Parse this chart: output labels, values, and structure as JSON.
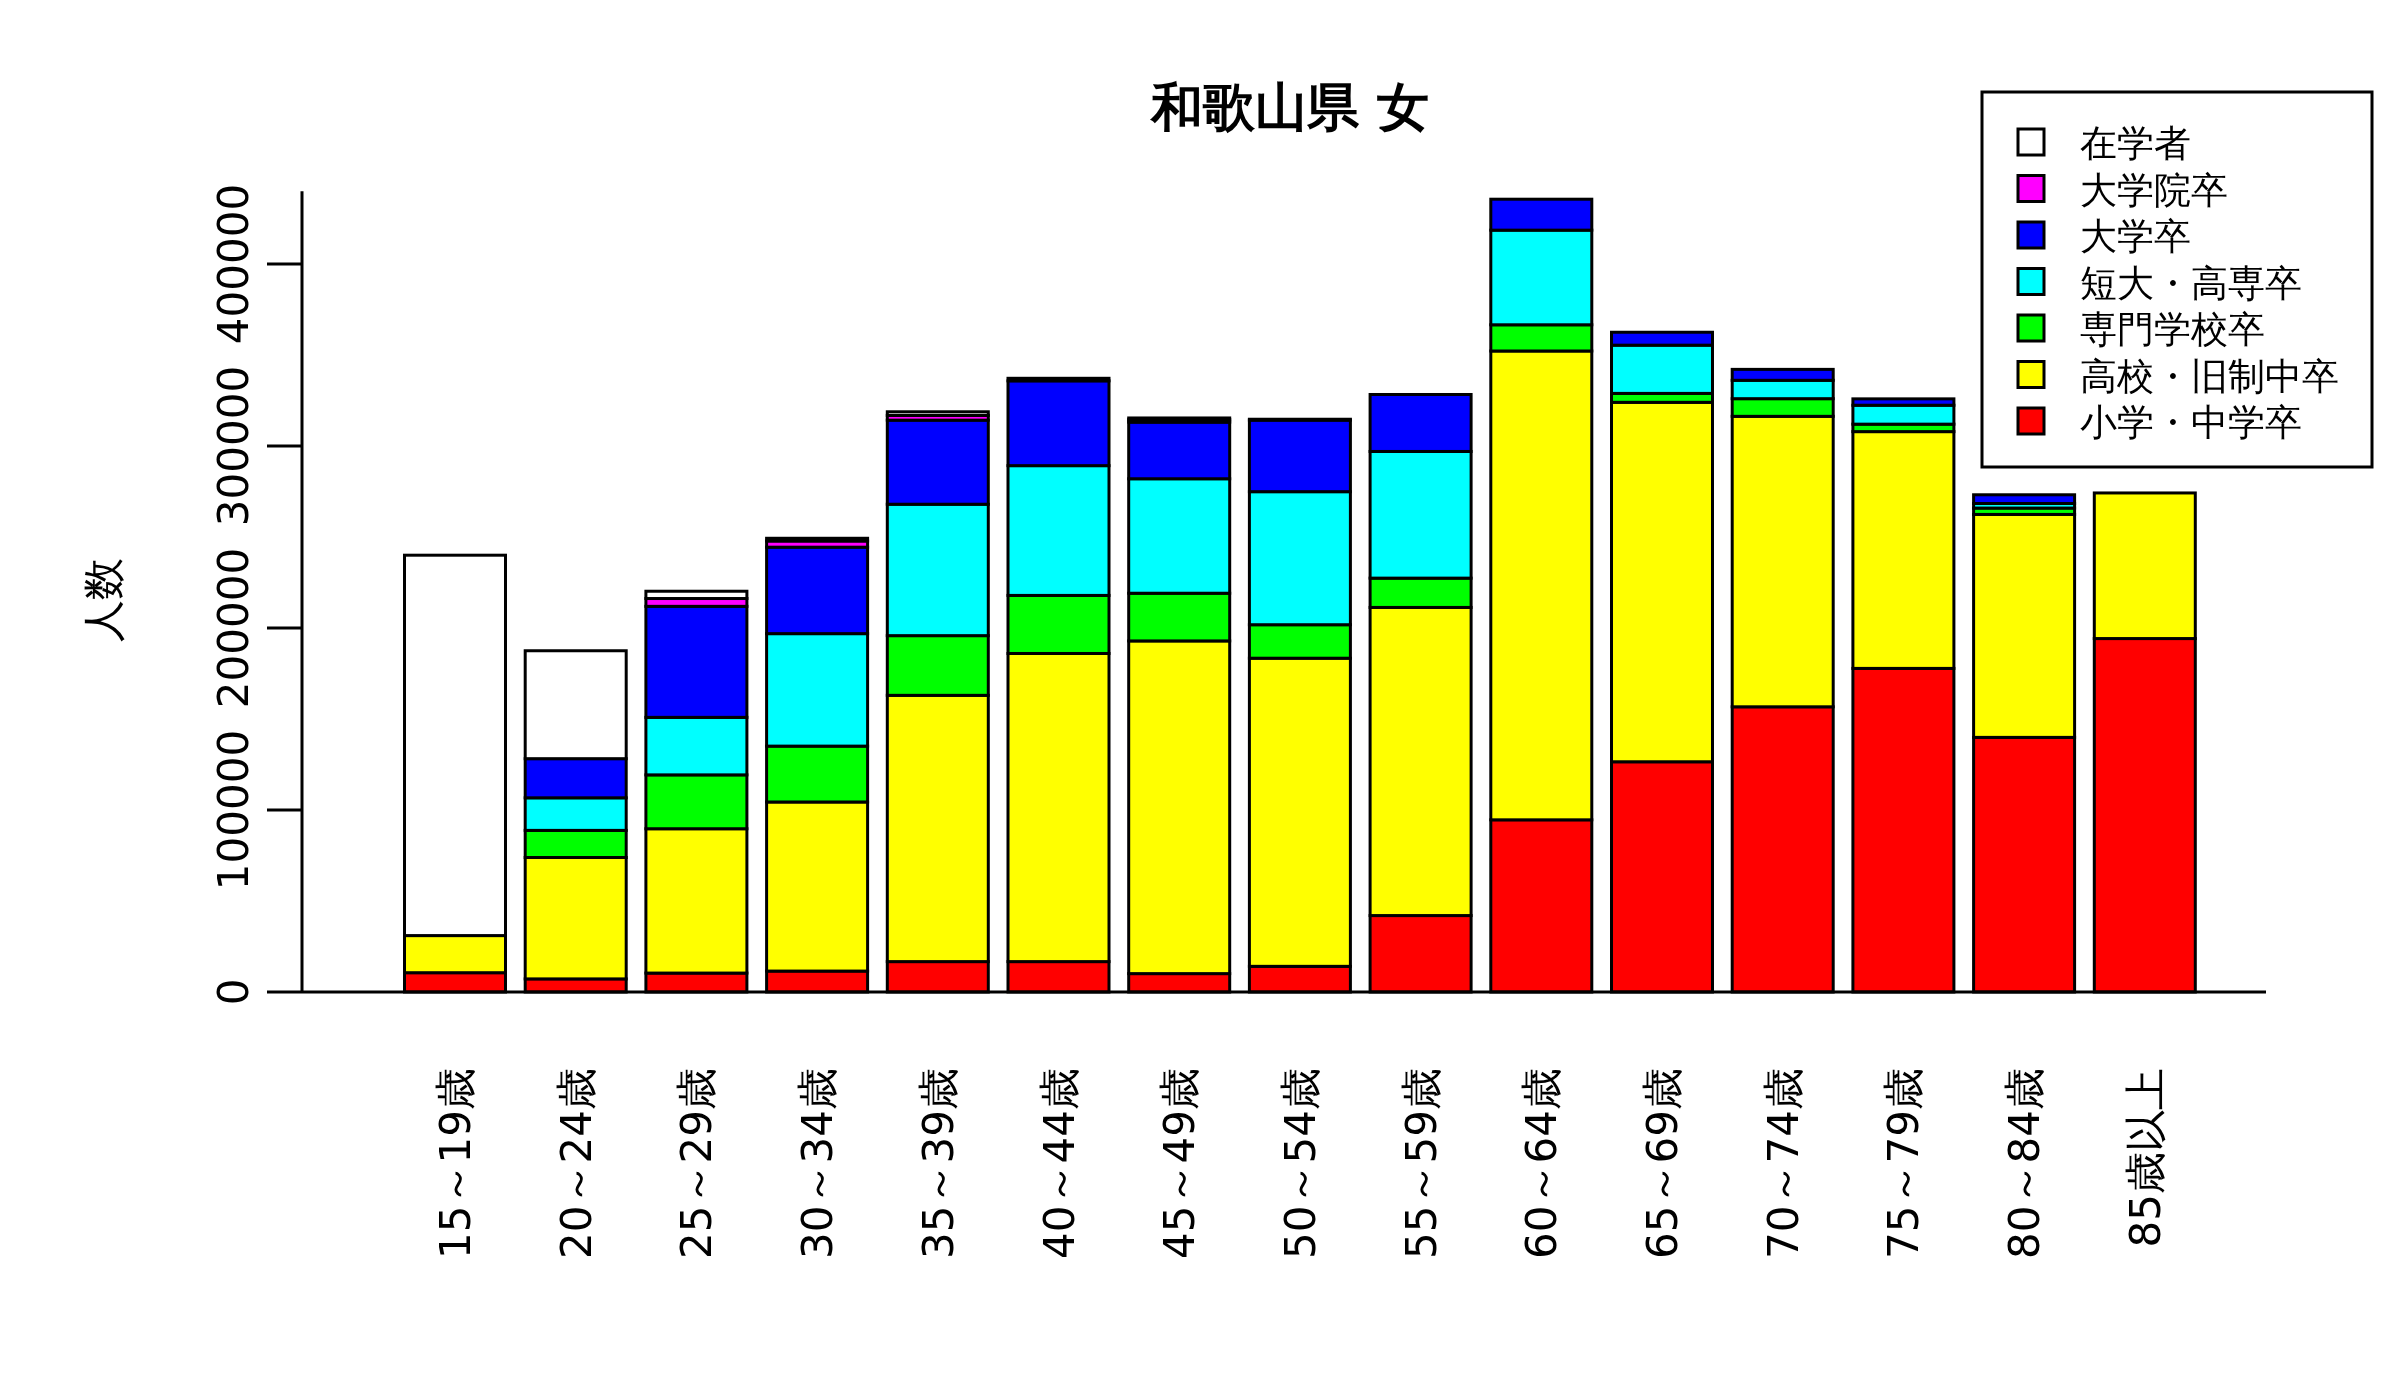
{
  "chart_data": {
    "type": "bar",
    "stacked": true,
    "title": "和歌山県 女",
    "ylabel": "人数",
    "categories": [
      "15～19歳",
      "20～24歳",
      "25～29歳",
      "30～34歳",
      "35～39歳",
      "40～44歳",
      "45～49歳",
      "50～54歳",
      "55～59歳",
      "60～64歳",
      "65～69歳",
      "70～74歳",
      "75～79歳",
      "80～84歳",
      "85歳以上"
    ],
    "series": [
      {
        "name": "小学・中学卒",
        "color": "#ff0000",
        "values": [
          10600,
          7200,
          10400,
          11500,
          16700,
          16700,
          10100,
          14100,
          42000,
          94600,
          126500,
          156700,
          177800,
          139900,
          194200
        ]
      },
      {
        "name": "高校・旧制中卒",
        "color": "#ffff00",
        "values": [
          20400,
          66700,
          79300,
          92900,
          146300,
          169300,
          182800,
          169300,
          169300,
          257600,
          197500,
          159600,
          130100,
          122500,
          80000
        ]
      },
      {
        "name": "専門学校卒",
        "color": "#00ff00",
        "values": [
          0,
          14900,
          29600,
          30700,
          32800,
          31900,
          26200,
          18400,
          16100,
          14400,
          4900,
          9700,
          4100,
          3500,
          null
        ]
      },
      {
        "name": "短大・高専卒",
        "color": "#00ffff",
        "values": [
          0,
          17900,
          31600,
          61800,
          72200,
          71300,
          62900,
          73100,
          69600,
          52000,
          26500,
          10100,
          10400,
          2500,
          null
        ]
      },
      {
        "name": "大学卒",
        "color": "#0000ff",
        "values": [
          0,
          21500,
          61000,
          47500,
          46200,
          46600,
          31100,
          39300,
          31300,
          17000,
          7100,
          6000,
          3500,
          4800,
          null
        ]
      },
      {
        "name": "大学院卒",
        "color": "#ff00ff",
        "values": [
          0,
          0,
          4300,
          3400,
          2600,
          null,
          1400,
          null,
          0,
          0,
          0,
          0,
          0,
          0,
          null
        ]
      },
      {
        "name": "在学者",
        "color": "#ffffff",
        "values": [
          209000,
          59300,
          4000,
          1500,
          2000,
          1400,
          900,
          500,
          0,
          0,
          0,
          0,
          0,
          0,
          null
        ]
      }
    ],
    "ylim": [
      0,
      440000
    ],
    "yticks": [
      0,
      100000,
      200000,
      300000,
      400000
    ],
    "grid": false,
    "legend": "top right"
  }
}
